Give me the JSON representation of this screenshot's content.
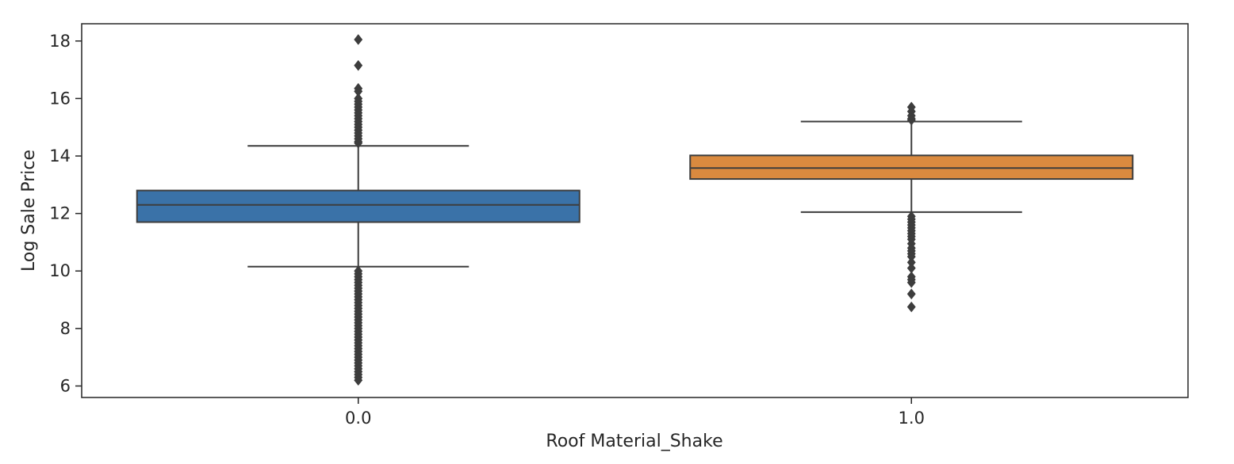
{
  "chart_data": {
    "type": "box",
    "title": "",
    "xlabel": "Roof Material_Shake",
    "ylabel": "Log Sale Price",
    "ylim": [
      5.6,
      18.6
    ],
    "yticks": [
      6,
      8,
      10,
      12,
      14,
      16,
      18
    ],
    "ytick_labels": [
      "6",
      "8",
      "10",
      "12",
      "14",
      "16",
      "18"
    ],
    "grid": false,
    "categories": [
      "0.0",
      "1.0"
    ],
    "boxes": [
      {
        "category": "0.0",
        "color": "#3a72a8",
        "whisker_low": 10.15,
        "q1": 11.7,
        "median": 12.3,
        "q3": 12.8,
        "whisker_high": 14.35,
        "outliers": [
          18.05,
          17.15,
          16.35,
          16.25,
          16.0,
          15.9,
          15.8,
          15.7,
          15.6,
          15.5,
          15.4,
          15.3,
          15.2,
          15.1,
          15.0,
          14.9,
          14.8,
          14.7,
          14.6,
          14.5,
          14.45,
          10.0,
          9.9,
          9.8,
          9.7,
          9.6,
          9.5,
          9.4,
          9.3,
          9.2,
          9.1,
          9.0,
          8.9,
          8.8,
          8.7,
          8.6,
          8.5,
          8.4,
          8.3,
          8.2,
          8.1,
          8.0,
          7.9,
          7.8,
          7.7,
          7.6,
          7.5,
          7.4,
          7.3,
          7.2,
          7.1,
          7.0,
          6.9,
          6.8,
          6.7,
          6.6,
          6.5,
          6.4,
          6.3,
          6.2
        ]
      },
      {
        "category": "1.0",
        "color": "#da8a3f",
        "whisker_low": 12.05,
        "q1": 13.2,
        "median": 13.58,
        "q3": 14.02,
        "whisker_high": 15.2,
        "outliers": [
          15.7,
          15.55,
          15.4,
          15.3,
          15.25,
          11.9,
          11.8,
          11.7,
          11.6,
          11.5,
          11.4,
          11.3,
          11.2,
          11.1,
          10.95,
          10.8,
          10.7,
          10.6,
          10.5,
          10.3,
          10.1,
          9.8,
          9.7,
          9.6,
          9.2,
          8.75
        ]
      }
    ]
  }
}
